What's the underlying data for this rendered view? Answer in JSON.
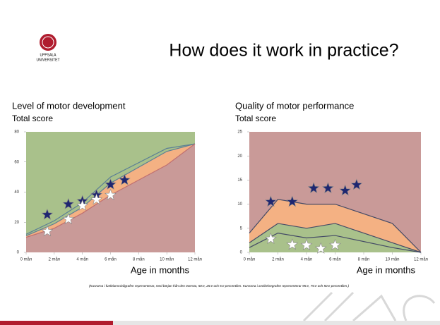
{
  "slide": {
    "title": "How does it work in practice?",
    "logo_text": [
      "UPPSALA",
      "UNIVERSITET"
    ],
    "footnote": "(Kurvorna i funktionsnivågrafen representerar,  med början från den översta, 50:e, 25:e och 5:e percentilen.  Kurvorna i avvikelsegrafen representerar 95:e, 75:e och 50:e percentilen.)"
  },
  "chart_data": [
    {
      "type": "line",
      "title": "Level of motor development",
      "ylabel": "Total score",
      "xlabel": "Age in months",
      "xlim": [
        0,
        12
      ],
      "ylim": [
        0,
        80
      ],
      "xticks": [
        {
          "value": 0,
          "label": "0 mån"
        },
        {
          "value": 2,
          "label": "2 mån"
        },
        {
          "value": 4,
          "label": "4 mån"
        },
        {
          "value": 6,
          "label": "6 mån"
        },
        {
          "value": 8,
          "label": "8 mån"
        },
        {
          "value": 10,
          "label": "10 mån"
        },
        {
          "value": 12,
          "label": "12 mån"
        }
      ],
      "yticks": [
        0,
        20,
        40,
        60,
        80
      ],
      "band_colors": [
        "#a9c18b",
        "#a9c18b",
        "#f4b183",
        "#c99a98"
      ],
      "series": [
        {
          "color": "#5b7f95",
          "x": [
            0,
            2,
            4,
            6,
            10,
            12
          ],
          "values": [
            12,
            21,
            33,
            50,
            69,
            72
          ]
        },
        {
          "color": "#5b7f95",
          "x": [
            0,
            2,
            4,
            6,
            10,
            12
          ],
          "values": [
            11,
            19,
            30,
            46,
            67,
            72
          ]
        },
        {
          "color": "#c07070",
          "x": [
            0,
            2,
            4,
            6,
            10,
            12
          ],
          "values": [
            10,
            16,
            26,
            38,
            58,
            72
          ]
        },
        {
          "color": "#1f2670",
          "marker": "star",
          "x": [
            1.5,
            3,
            4,
            5,
            6,
            7
          ],
          "values": [
            25,
            32,
            34,
            38,
            45,
            48
          ]
        },
        {
          "color": "#ffffff",
          "marker": "star",
          "x": [
            1.5,
            3,
            4,
            5,
            6
          ],
          "values": [
            14,
            22,
            31,
            35,
            38
          ]
        }
      ]
    },
    {
      "type": "line",
      "title": "Quality of motor performance",
      "ylabel": "Total score",
      "xlabel": "Age in months",
      "xlim": [
        0,
        12
      ],
      "ylim": [
        0,
        25
      ],
      "xticks": [
        {
          "value": 0,
          "label": "0 mån"
        },
        {
          "value": 2,
          "label": "2 mån"
        },
        {
          "value": 4,
          "label": "4 mån"
        },
        {
          "value": 6,
          "label": "6 mån"
        },
        {
          "value": 8,
          "label": "8 mån"
        },
        {
          "value": 10,
          "label": "10 mån"
        },
        {
          "value": 12,
          "label": "12 mån"
        }
      ],
      "yticks": [
        0,
        5,
        10,
        15,
        20,
        25
      ],
      "band_colors": [
        "#c99a98",
        "#f4b183",
        "#a9c18b",
        "#a9c18b"
      ],
      "series": [
        {
          "color": "#444a66",
          "x": [
            0,
            2,
            4,
            6,
            10,
            12
          ],
          "values": [
            4,
            11,
            10,
            10,
            6,
            0
          ]
        },
        {
          "color": "#444a66",
          "x": [
            0,
            2,
            4,
            6,
            10,
            12
          ],
          "values": [
            2,
            6,
            5,
            6,
            2,
            0
          ]
        },
        {
          "color": "#444a66",
          "x": [
            0,
            2,
            4,
            6,
            10,
            12
          ],
          "values": [
            1,
            4,
            3,
            3.5,
            1,
            0
          ]
        },
        {
          "color": "#1f2670",
          "marker": "star",
          "x": [
            1.5,
            3,
            4.5,
            5.5,
            6.7,
            7.5
          ],
          "values": [
            10.5,
            10.5,
            13.3,
            13.3,
            12.8,
            14
          ]
        },
        {
          "color": "#ffffff",
          "marker": "star",
          "x": [
            1.5,
            3,
            4,
            5,
            6
          ],
          "values": [
            2.8,
            1.6,
            1.5,
            0.8,
            1.5
          ]
        }
      ]
    }
  ]
}
